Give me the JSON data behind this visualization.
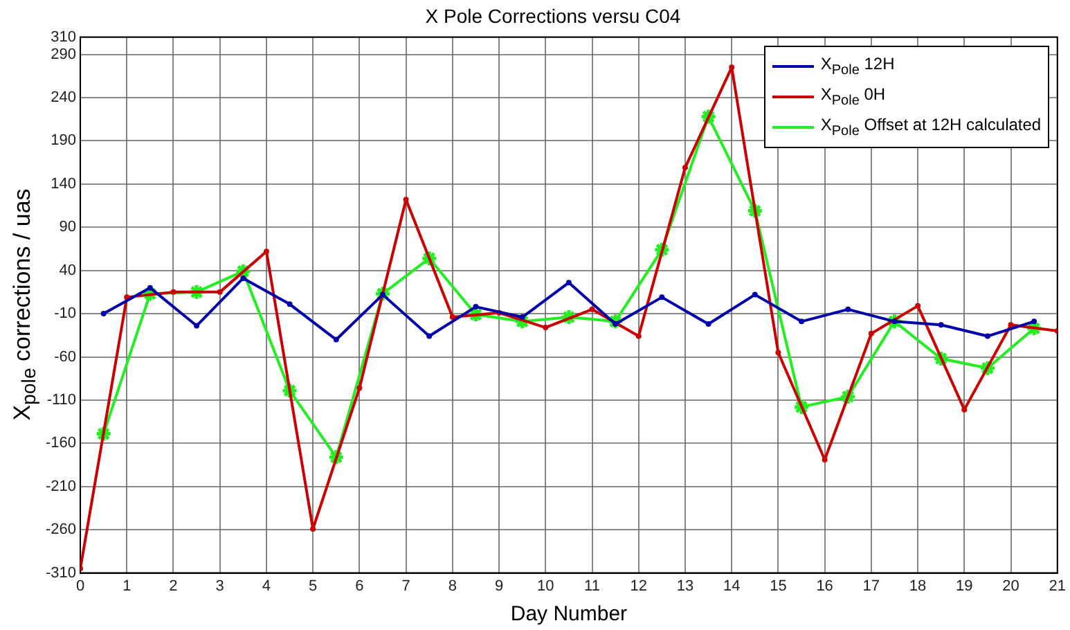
{
  "chart_data": {
    "type": "line",
    "title": "X Pole Corrections versu C04",
    "xlabel": "Day Number",
    "ylabel": "X$_{pole}$ corrections / uas",
    "xlim": [
      0,
      21
    ],
    "xticks": [
      0,
      1,
      2,
      3,
      4,
      5,
      6,
      7,
      8,
      9,
      10,
      11,
      12,
      13,
      14,
      15,
      16,
      17,
      18,
      19,
      20,
      21
    ],
    "ylim": [
      -310,
      310
    ],
    "yticks": [
      -310,
      -260,
      -210,
      -160,
      -110,
      -60,
      -10,
      40,
      90,
      140,
      190,
      240,
      290,
      310
    ],
    "grid": true,
    "legend": "top right",
    "line_style": "solid",
    "series": [
      {
        "name": "X$_{Pole}$ 12H",
        "color": "#0000aa",
        "marker": "circle",
        "x": [
          0.5,
          1.5,
          2.5,
          3.5,
          4.5,
          5.5,
          6.5,
          7.5,
          8.5,
          9.5,
          10.5,
          11.5,
          12.5,
          13.5,
          14.5,
          15.5,
          16.5,
          17.5,
          18.5,
          19.5,
          20.5
        ],
        "values": [
          -10,
          20,
          -24,
          31,
          1,
          -40,
          12,
          -36,
          -2,
          -14,
          26,
          -22,
          9,
          -22,
          12,
          -19,
          -5,
          -19,
          -23,
          -36,
          -19
        ]
      },
      {
        "name": "X$_{Pole}$ 0H",
        "color": "#cc0000",
        "marker": "circle",
        "x": [
          0,
          1,
          2,
          3,
          4,
          5,
          6,
          7,
          8,
          9,
          10,
          11,
          12,
          13,
          14,
          15,
          16,
          17,
          18,
          19,
          20,
          21
        ],
        "values": [
          -305,
          9,
          15,
          15,
          62,
          -259,
          -96,
          122,
          -14,
          -9,
          -26,
          -5,
          -36,
          159,
          275,
          -55,
          -179,
          -33,
          -1,
          -121,
          -23,
          -30
        ]
      },
      {
        "name": "X$_{Pole}$ Offset at 12H calculated",
        "color": "#22ee22",
        "marker": "cross",
        "x": [
          0.5,
          1.5,
          2.5,
          3.5,
          4.5,
          5.5,
          6.5,
          7.5,
          8.5,
          9.5,
          10.5,
          11.5,
          12.5,
          13.5,
          14.5,
          15.5,
          16.5,
          17.5,
          18.5,
          19.5,
          20.5
        ],
        "values": [
          -149,
          13,
          15,
          39,
          -99,
          -176,
          13,
          54,
          -11,
          -19,
          -14,
          -19,
          64,
          218,
          109,
          -118,
          -106,
          -19,
          -62,
          -73,
          -27
        ]
      }
    ]
  }
}
